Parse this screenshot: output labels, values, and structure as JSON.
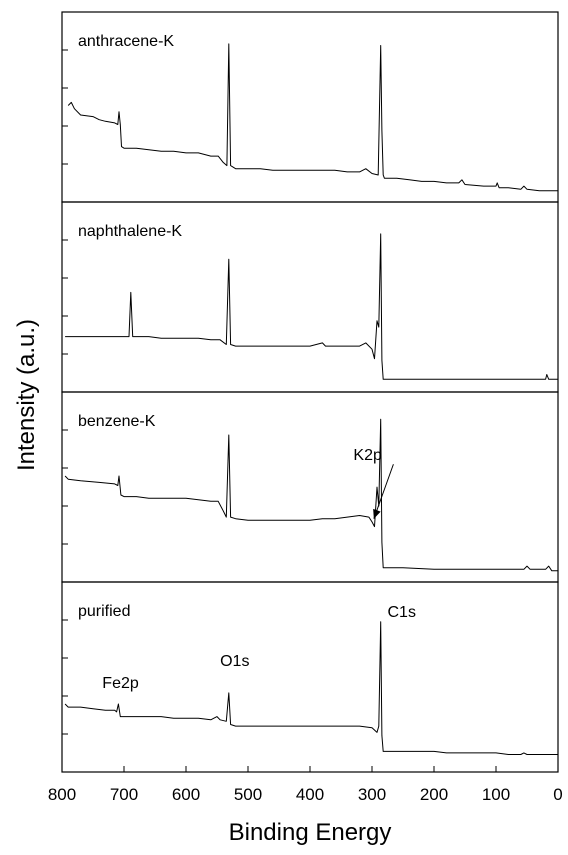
{
  "chart_data": {
    "type": "line",
    "xlabel": "Binding Energy",
    "ylabel": "Intensity (a.u.)",
    "xlim": [
      800,
      0
    ],
    "x_ticks": [
      800,
      700,
      600,
      500,
      400,
      300,
      200,
      100,
      0
    ],
    "x_tick_labels": [
      "800",
      "700",
      "600",
      "500",
      "400",
      "300",
      "200",
      "100",
      "0"
    ],
    "grid": false,
    "y_scale": "arbitrary (stacked panels, y tick labels not printed)",
    "series": [
      {
        "name": "anthracene-K",
        "ylim": [
          0,
          100
        ],
        "points": [
          [
            790,
            56
          ],
          [
            785,
            58
          ],
          [
            780,
            54
          ],
          [
            770,
            50
          ],
          [
            750,
            49
          ],
          [
            740,
            47
          ],
          [
            730,
            46
          ],
          [
            715,
            45
          ],
          [
            710,
            44
          ],
          [
            708,
            52
          ],
          [
            706,
            44
          ],
          [
            704,
            30
          ],
          [
            700,
            29
          ],
          [
            680,
            29
          ],
          [
            660,
            28
          ],
          [
            640,
            27
          ],
          [
            620,
            27
          ],
          [
            600,
            26
          ],
          [
            580,
            26
          ],
          [
            560,
            24
          ],
          [
            548,
            24
          ],
          [
            540,
            20
          ],
          [
            534,
            18
          ],
          [
            531,
            95
          ],
          [
            528,
            18
          ],
          [
            520,
            16
          ],
          [
            500,
            16
          ],
          [
            480,
            16
          ],
          [
            460,
            15
          ],
          [
            440,
            15
          ],
          [
            420,
            15
          ],
          [
            400,
            15
          ],
          [
            380,
            15
          ],
          [
            360,
            15
          ],
          [
            340,
            14
          ],
          [
            320,
            14
          ],
          [
            310,
            16
          ],
          [
            300,
            13
          ],
          [
            290,
            12
          ],
          [
            286,
            94
          ],
          [
            284,
            40
          ],
          [
            282,
            12
          ],
          [
            280,
            10
          ],
          [
            260,
            10
          ],
          [
            240,
            9
          ],
          [
            220,
            8
          ],
          [
            200,
            8
          ],
          [
            180,
            7
          ],
          [
            160,
            7
          ],
          [
            155,
            9
          ],
          [
            150,
            6
          ],
          [
            120,
            5
          ],
          [
            100,
            5
          ],
          [
            98,
            7
          ],
          [
            95,
            4
          ],
          [
            80,
            4
          ],
          [
            60,
            3
          ],
          [
            55,
            5
          ],
          [
            50,
            3
          ],
          [
            30,
            2
          ],
          [
            10,
            2
          ],
          [
            0,
            2
          ]
        ]
      },
      {
        "name": "naphthalene-K",
        "ylim": [
          0,
          100
        ],
        "points": [
          [
            795,
            30
          ],
          [
            780,
            30
          ],
          [
            760,
            30
          ],
          [
            740,
            30
          ],
          [
            720,
            30
          ],
          [
            700,
            30
          ],
          [
            692,
            30
          ],
          [
            689,
            58
          ],
          [
            686,
            30
          ],
          [
            680,
            30
          ],
          [
            660,
            30
          ],
          [
            640,
            29
          ],
          [
            620,
            29
          ],
          [
            600,
            29
          ],
          [
            580,
            29
          ],
          [
            560,
            28
          ],
          [
            545,
            28
          ],
          [
            535,
            25
          ],
          [
            531,
            79
          ],
          [
            528,
            25
          ],
          [
            520,
            24
          ],
          [
            500,
            24
          ],
          [
            480,
            24
          ],
          [
            460,
            24
          ],
          [
            440,
            24
          ],
          [
            420,
            24
          ],
          [
            400,
            24
          ],
          [
            380,
            26
          ],
          [
            375,
            24
          ],
          [
            360,
            24
          ],
          [
            340,
            24
          ],
          [
            320,
            24
          ],
          [
            310,
            26
          ],
          [
            300,
            22
          ],
          [
            296,
            16
          ],
          [
            292,
            40
          ],
          [
            289,
            36
          ],
          [
            286,
            95
          ],
          [
            284,
            15
          ],
          [
            282,
            3
          ],
          [
            280,
            3
          ],
          [
            250,
            3
          ],
          [
            200,
            3
          ],
          [
            150,
            3
          ],
          [
            100,
            3
          ],
          [
            50,
            3
          ],
          [
            20,
            3
          ],
          [
            18,
            6
          ],
          [
            15,
            3
          ],
          [
            0,
            3
          ]
        ]
      },
      {
        "name": "benzene-K",
        "ylim": [
          0,
          100
        ],
        "points": [
          [
            795,
            62
          ],
          [
            790,
            60
          ],
          [
            770,
            59
          ],
          [
            740,
            58
          ],
          [
            715,
            57
          ],
          [
            710,
            56
          ],
          [
            708,
            62
          ],
          [
            705,
            50
          ],
          [
            700,
            49
          ],
          [
            680,
            49
          ],
          [
            660,
            48
          ],
          [
            640,
            48
          ],
          [
            620,
            48
          ],
          [
            600,
            48
          ],
          [
            580,
            47
          ],
          [
            560,
            46
          ],
          [
            548,
            46
          ],
          [
            540,
            40
          ],
          [
            535,
            36
          ],
          [
            531,
            88
          ],
          [
            528,
            36
          ],
          [
            520,
            35
          ],
          [
            500,
            34
          ],
          [
            480,
            34
          ],
          [
            460,
            34
          ],
          [
            440,
            34
          ],
          [
            420,
            34
          ],
          [
            400,
            34
          ],
          [
            380,
            35
          ],
          [
            360,
            35
          ],
          [
            340,
            36
          ],
          [
            320,
            37
          ],
          [
            305,
            36
          ],
          [
            300,
            33
          ],
          [
            296,
            30
          ],
          [
            292,
            55
          ],
          [
            289,
            43
          ],
          [
            286,
            98
          ],
          [
            284,
            20
          ],
          [
            282,
            4
          ],
          [
            280,
            4
          ],
          [
            250,
            4
          ],
          [
            200,
            3
          ],
          [
            150,
            3
          ],
          [
            100,
            3
          ],
          [
            55,
            3
          ],
          [
            50,
            5
          ],
          [
            45,
            3
          ],
          [
            20,
            3
          ],
          [
            15,
            5
          ],
          [
            10,
            2
          ],
          [
            0,
            2
          ]
        ]
      },
      {
        "name": "purified",
        "ylim": [
          0,
          100
        ],
        "points": [
          [
            795,
            38
          ],
          [
            790,
            36
          ],
          [
            770,
            36
          ],
          [
            750,
            35
          ],
          [
            730,
            34
          ],
          [
            715,
            34
          ],
          [
            712,
            33
          ],
          [
            709,
            38
          ],
          [
            706,
            30
          ],
          [
            700,
            30
          ],
          [
            680,
            30
          ],
          [
            660,
            30
          ],
          [
            640,
            30
          ],
          [
            620,
            29
          ],
          [
            600,
            29
          ],
          [
            580,
            29
          ],
          [
            560,
            28
          ],
          [
            550,
            30
          ],
          [
            545,
            28
          ],
          [
            535,
            27
          ],
          [
            531,
            45
          ],
          [
            528,
            25
          ],
          [
            520,
            24
          ],
          [
            500,
            24
          ],
          [
            480,
            24
          ],
          [
            460,
            24
          ],
          [
            440,
            24
          ],
          [
            420,
            24
          ],
          [
            400,
            24
          ],
          [
            380,
            24
          ],
          [
            360,
            24
          ],
          [
            340,
            24
          ],
          [
            320,
            24
          ],
          [
            300,
            23
          ],
          [
            292,
            20
          ],
          [
            289,
            24
          ],
          [
            286,
            90
          ],
          [
            284,
            18
          ],
          [
            282,
            8
          ],
          [
            280,
            8
          ],
          [
            260,
            8
          ],
          [
            240,
            8
          ],
          [
            220,
            8
          ],
          [
            200,
            8
          ],
          [
            180,
            7
          ],
          [
            160,
            7
          ],
          [
            140,
            7
          ],
          [
            120,
            7
          ],
          [
            100,
            7
          ],
          [
            80,
            6
          ],
          [
            60,
            6
          ],
          [
            55,
            7
          ],
          [
            50,
            6
          ],
          [
            30,
            6
          ],
          [
            10,
            6
          ],
          [
            0,
            6
          ]
        ]
      }
    ],
    "annotations": [
      {
        "panel": 2,
        "text": "K2p",
        "arrow_to": [
          297,
          35
        ],
        "text_at": [
          330,
          72
        ]
      },
      {
        "panel": 3,
        "text": "O1s",
        "at": [
          545,
          62
        ]
      },
      {
        "panel": 3,
        "text": "Fe2p",
        "at": [
          735,
          48
        ]
      },
      {
        "panel": 3,
        "text": "C1s",
        "at": [
          275,
          93
        ]
      }
    ]
  }
}
